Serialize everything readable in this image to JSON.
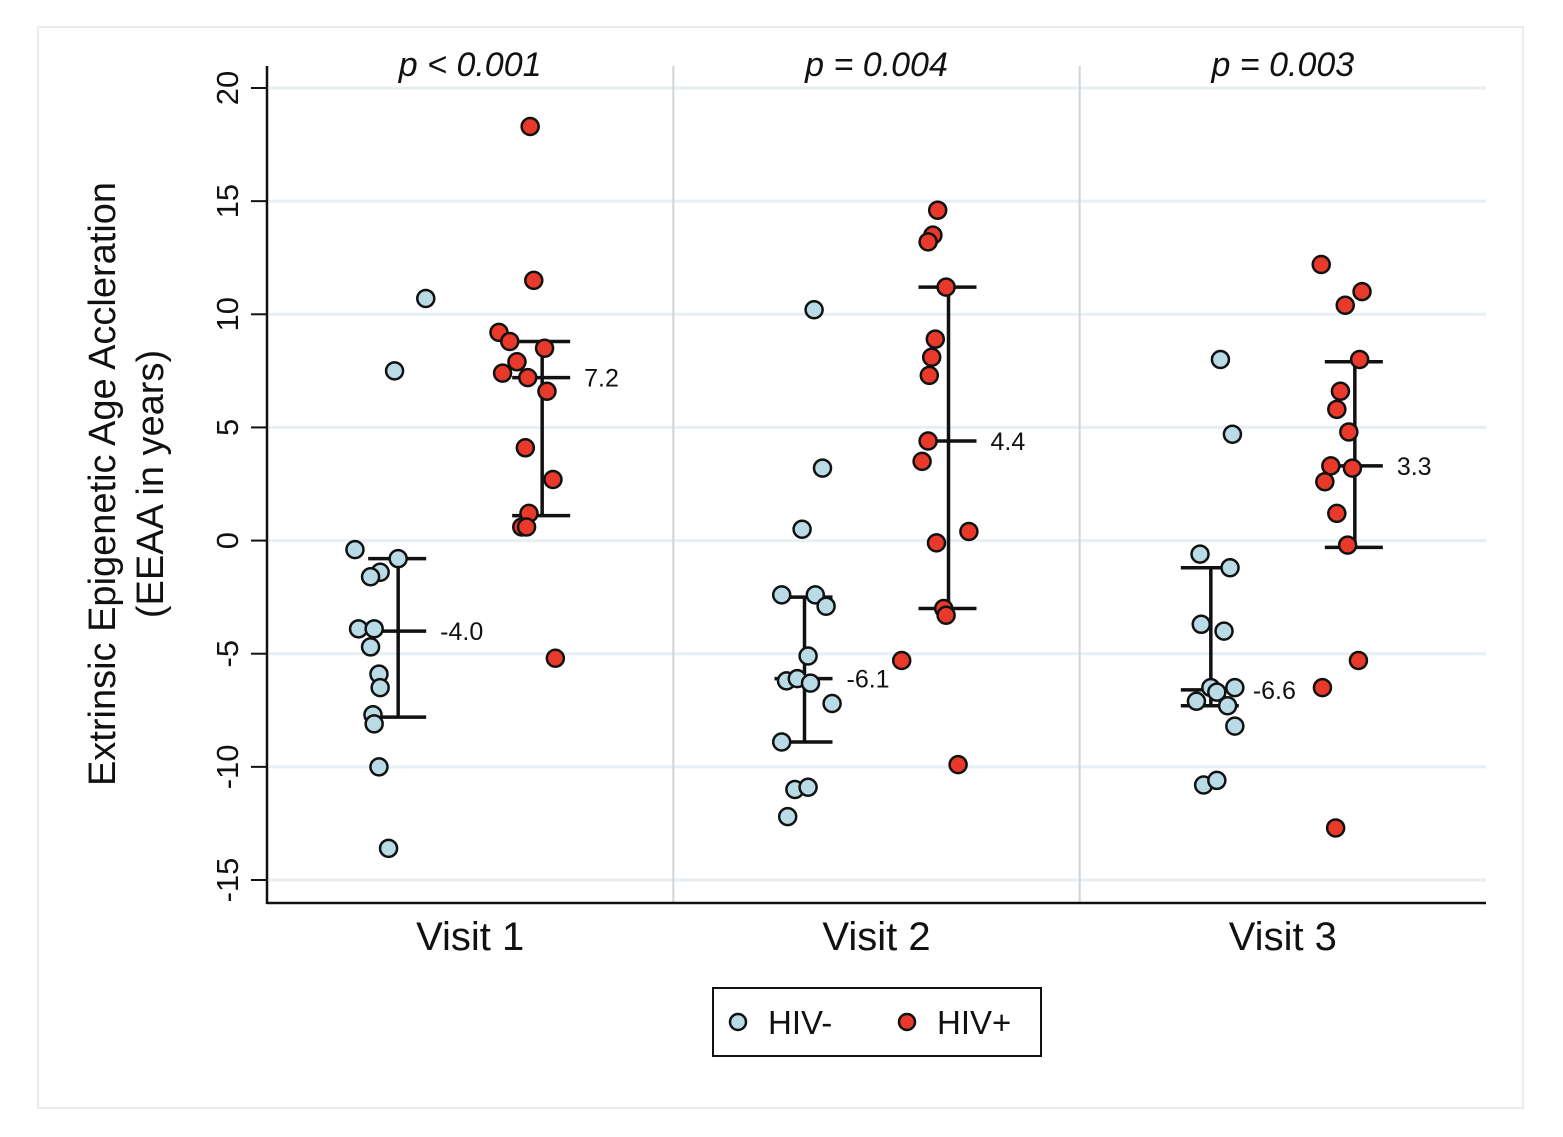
{
  "chart_data": {
    "type": "scatter",
    "title": "",
    "xlabel": "",
    "ylabel": "Extrinsic Epigenetic Age Accleration",
    "ylabel_line2": "(EEAA in years)",
    "ylim": [
      -15,
      20
    ],
    "yticks": [
      20,
      15,
      10,
      5,
      0,
      -5,
      -10,
      -15
    ],
    "ytick_labels": [
      "20",
      "15",
      "10",
      "5",
      "0",
      "-5",
      "-10",
      "-15"
    ],
    "grid": true,
    "legend_position": "bottom-center",
    "categories": [
      "Visit 1",
      "Visit 2",
      "Visit 3"
    ],
    "p_values": [
      "p < 0.001",
      "p = 0.004",
      "p = 0.003"
    ],
    "colors": {
      "HIV-": "#b9dbe6",
      "HIV+": "#e8392a",
      "grid": "#e8eff3",
      "separator": "#cfd4d7"
    },
    "legend": [
      {
        "name": "HIV-",
        "label": "HIV-"
      },
      {
        "name": "HIV+",
        "label": "HIV+"
      }
    ],
    "series": [
      {
        "name": "HIV-",
        "panels": [
          {
            "visit": "Visit 1",
            "values": [
              10.7,
              7.5,
              -0.4,
              -0.8,
              -1.4,
              -1.6,
              -3.9,
              -3.9,
              -4.7,
              -5.9,
              -6.5,
              -7.7,
              -8.1,
              -10.0,
              -13.6
            ],
            "jitter": [
              -0.37,
              -0.63,
              -0.96,
              -0.6,
              -0.75,
              -0.83,
              -0.93,
              -0.8,
              -0.83,
              -0.76,
              -0.75,
              -0.81,
              -0.8,
              -0.76,
              -0.68
            ],
            "median": -4.0,
            "lower": -7.8,
            "upper": -0.8,
            "median_label": "-4.0"
          },
          {
            "visit": "Visit 2",
            "values": [
              10.2,
              3.2,
              0.5,
              -2.4,
              -2.4,
              -2.9,
              -5.1,
              -6.2,
              -6.1,
              -6.3,
              -7.2,
              -8.9,
              -11.0,
              -10.9,
              -12.2
            ],
            "jitter": [
              -0.52,
              -0.45,
              -0.62,
              -0.79,
              -0.51,
              -0.42,
              -0.57,
              -0.75,
              -0.66,
              -0.55,
              -0.37,
              -0.79,
              -0.68,
              -0.57,
              -0.74
            ],
            "median": -6.1,
            "lower": -8.9,
            "upper": -2.5,
            "median_label": "-6.1"
          },
          {
            "visit": "Visit 3",
            "values": [
              8.0,
              4.7,
              -0.6,
              -1.2,
              -3.7,
              -4.0,
              -6.5,
              -6.7,
              -6.5,
              -7.1,
              -7.3,
              -8.2,
              -10.8,
              -10.6
            ],
            "jitter": [
              -0.52,
              -0.42,
              -0.69,
              -0.44,
              -0.68,
              -0.49,
              -0.6,
              -0.55,
              -0.4,
              -0.72,
              -0.46,
              -0.4,
              -0.66,
              -0.55
            ],
            "median": -6.6,
            "lower": -7.3,
            "upper": -1.2,
            "median_label": "-6.6"
          }
        ]
      },
      {
        "name": "HIV+",
        "panels": [
          {
            "visit": "Visit 1",
            "values": [
              18.3,
              11.5,
              9.2,
              8.8,
              8.5,
              7.9,
              7.4,
              7.2,
              6.6,
              4.1,
              2.7,
              1.2,
              0.6,
              0.6,
              -5.2
            ],
            "jitter": [
              0.5,
              0.53,
              0.24,
              0.33,
              0.62,
              0.39,
              0.27,
              0.48,
              0.64,
              0.46,
              0.69,
              0.49,
              0.43,
              0.47,
              0.71
            ],
            "median": 7.2,
            "lower": 1.1,
            "upper": 8.8,
            "median_label": "7.2"
          },
          {
            "visit": "Visit 2",
            "values": [
              14.6,
              13.5,
              13.2,
              11.2,
              8.9,
              8.1,
              7.3,
              4.4,
              3.5,
              0.4,
              -0.1,
              -3.0,
              -3.3,
              -5.3,
              -9.9
            ],
            "jitter": [
              0.51,
              0.47,
              0.43,
              0.58,
              0.49,
              0.46,
              0.44,
              0.43,
              0.38,
              0.77,
              0.5,
              0.56,
              0.58,
              0.21,
              0.68
            ],
            "median": 4.4,
            "lower": -3.0,
            "upper": 11.2,
            "median_label": "4.4"
          },
          {
            "visit": "Visit 3",
            "values": [
              12.2,
              11.0,
              10.4,
              8.0,
              6.6,
              5.8,
              4.8,
              3.3,
              3.2,
              2.6,
              1.2,
              -0.2,
              -5.3,
              -6.5,
              -12.7
            ],
            "jitter": [
              0.32,
              0.66,
              0.52,
              0.64,
              0.48,
              0.45,
              0.55,
              0.4,
              0.58,
              0.35,
              0.45,
              0.54,
              0.63,
              0.33,
              0.44
            ],
            "median": 3.3,
            "lower": -0.3,
            "upper": 7.9,
            "median_label": "3.3"
          }
        ]
      }
    ]
  }
}
